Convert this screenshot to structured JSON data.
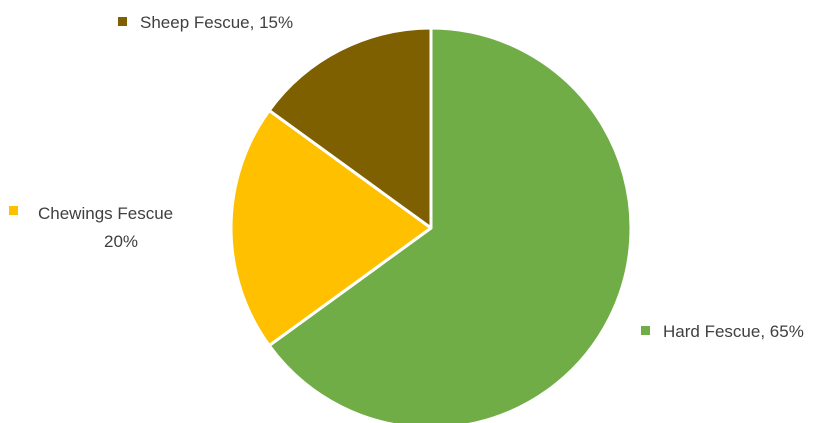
{
  "chart_data": {
    "type": "pie",
    "title": "",
    "slices": [
      {
        "name": "Hard Fescue",
        "value": 65,
        "value_label": "65%",
        "color": "#70AD47"
      },
      {
        "name": "Chewings Fescue",
        "value": 20,
        "value_label": "20%",
        "color": "#FFC000"
      },
      {
        "name": "Sheep Fescue",
        "value": 15,
        "value_label": "15%",
        "color": "#7F6000"
      }
    ],
    "start": "12 o'clock",
    "direction": "clockwise",
    "labels": "outside, with colored square marker",
    "slice_border_color": "#ffffff"
  }
}
